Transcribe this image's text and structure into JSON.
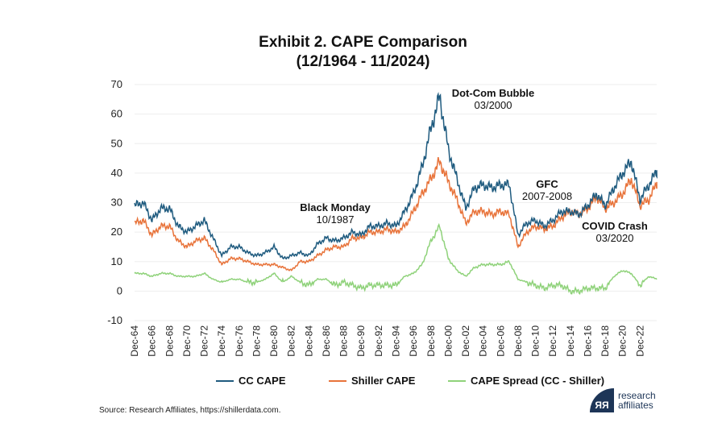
{
  "chart_data": {
    "type": "line",
    "title": "Exhibit 2. CAPE Comparison",
    "subtitle": "(12/1964 - 11/2024)",
    "xlabel": "",
    "ylabel": "",
    "ylim": [
      -10,
      70
    ],
    "yticks": [
      "70",
      "60",
      "50",
      "40",
      "30",
      "20",
      "10",
      "0",
      "-10"
    ],
    "ytick_values": [
      70,
      60,
      50,
      40,
      30,
      20,
      10,
      0,
      -10
    ],
    "xticks": [
      "Dec-64",
      "Dec-66",
      "Dec-68",
      "Dec-70",
      "Dec-72",
      "Dec-74",
      "Dec-76",
      "Dec-78",
      "Dec-80",
      "Dec-82",
      "Dec-84",
      "Dec-86",
      "Dec-88",
      "Dec-90",
      "Dec-92",
      "Dec-94",
      "Dec-96",
      "Dec-98",
      "Dec-00",
      "Dec-02",
      "Dec-04",
      "Dec-06",
      "Dec-08",
      "Dec-10",
      "Dec-12",
      "Dec-14",
      "Dec-16",
      "Dec-18",
      "Dec-20",
      "Dec-22"
    ],
    "x": [
      1964,
      1965,
      1966,
      1967,
      1968,
      1969,
      1970,
      1971,
      1972,
      1973,
      1974,
      1975,
      1976,
      1977,
      1978,
      1979,
      1980,
      1981,
      1982,
      1983,
      1984,
      1985,
      1986,
      1987,
      1988,
      1989,
      1990,
      1991,
      1992,
      1993,
      1994,
      1995,
      1996,
      1997,
      1998,
      1999,
      2000,
      2001,
      2002,
      2003,
      2004,
      2005,
      2006,
      2007,
      2008,
      2009,
      2010,
      2011,
      2012,
      2013,
      2014,
      2015,
      2016,
      2017,
      2018,
      2019,
      2020,
      2021,
      2022,
      2023,
      2024
    ],
    "series": [
      {
        "name": "CC CAPE",
        "color": "#1f5b7f",
        "values": [
          29,
          30,
          24,
          28,
          28,
          22,
          20,
          22,
          24,
          18,
          12,
          15,
          15,
          13,
          12,
          13,
          15,
          11,
          12,
          13,
          12,
          16,
          18,
          17,
          18,
          20,
          19,
          22,
          22,
          23,
          22,
          27,
          33,
          42,
          55,
          66,
          48,
          38,
          28,
          35,
          36,
          35,
          36,
          36,
          19,
          23,
          24,
          22,
          24,
          27,
          27,
          26,
          29,
          33,
          29,
          35,
          40,
          44,
          31,
          36,
          41
        ]
      },
      {
        "name": "Shiller CAPE",
        "color": "#e8733a",
        "values": [
          23,
          24,
          19,
          22,
          22,
          17,
          15,
          17,
          18,
          14,
          9,
          11,
          11,
          10,
          9,
          9,
          9,
          8,
          7,
          10,
          10,
          12,
          14,
          15,
          15,
          18,
          18,
          20,
          20,
          21,
          20,
          22,
          27,
          33,
          38,
          44,
          37,
          31,
          23,
          27,
          27,
          26,
          27,
          26,
          15,
          20,
          22,
          21,
          22,
          25,
          27,
          26,
          28,
          32,
          28,
          30,
          33,
          38,
          29,
          31,
          37
        ]
      },
      {
        "name": "CAPE Spread (CC - Shiller)",
        "color": "#8fd27a",
        "values": [
          6,
          6,
          5,
          6,
          6,
          5,
          5,
          5,
          6,
          4,
          3,
          4,
          4,
          3,
          3,
          4,
          6,
          3,
          5,
          3,
          2,
          4,
          4,
          2,
          3,
          2,
          1,
          2,
          2,
          2,
          2,
          5,
          6,
          9,
          17,
          22,
          11,
          7,
          5,
          8,
          9,
          9,
          9,
          10,
          4,
          3,
          2,
          1,
          2,
          2,
          0,
          0,
          1,
          1,
          1,
          5,
          7,
          6,
          2,
          5,
          4
        ]
      }
    ],
    "annotations": [
      {
        "title": "Black Monday",
        "sub": "10/1987"
      },
      {
        "title": "Dot-Com Bubble",
        "sub": "03/2000"
      },
      {
        "title": "GFC",
        "sub": "2007-2008"
      },
      {
        "title": "COVID Crash",
        "sub": "03/2020"
      }
    ],
    "grid": true,
    "legend": "bottom"
  },
  "source": "Source: Research Affiliates, https://shillerdata.com.",
  "logo": {
    "mark": "ЯЯ",
    "line1": "research",
    "line2": "affiliates"
  }
}
